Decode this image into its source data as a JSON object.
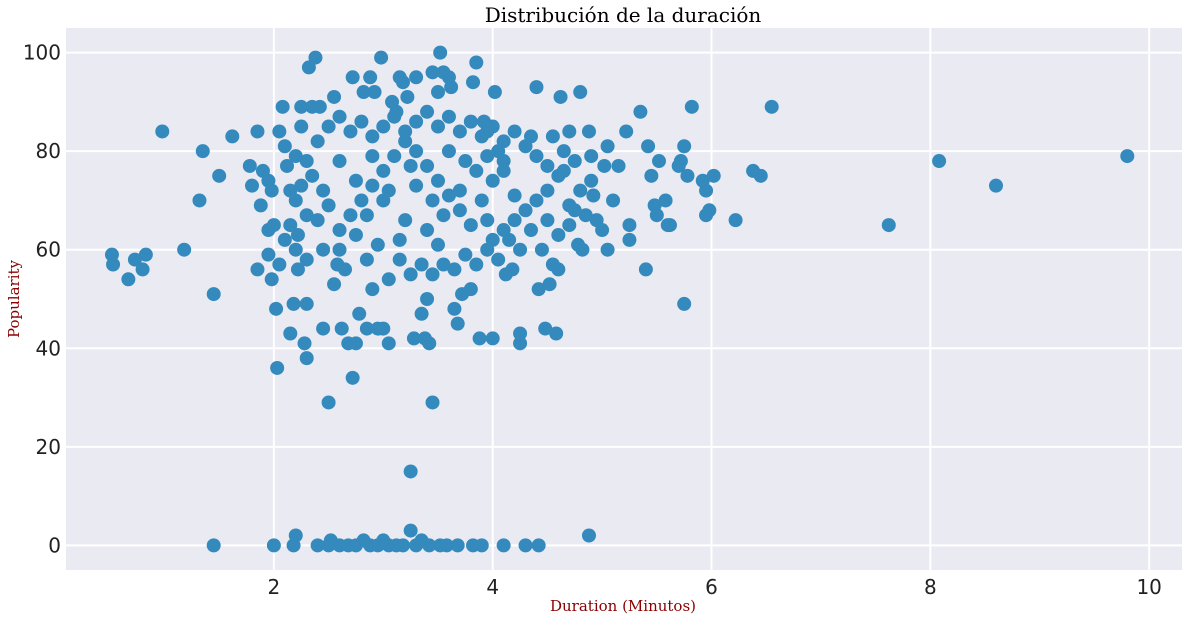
{
  "colors": {
    "background": "#ffffff",
    "plot_area": "#eaeaf2",
    "grid": "#ffffff",
    "marker": "#348abd",
    "axis_label": "#8b0000",
    "title": "#000000"
  },
  "chart_data": {
    "type": "scatter",
    "title": "Distribución de la duración",
    "xlabel": "Duration (Minutos)",
    "ylabel": "Popularity",
    "xlim": [
      0.1,
      10.3
    ],
    "ylim": [
      -5,
      105
    ],
    "xticks": [
      2,
      4,
      6,
      8,
      10
    ],
    "yticks": [
      0,
      20,
      40,
      60,
      80,
      100
    ],
    "grid": true,
    "marker_color": "#348abd",
    "points": [
      [
        0.52,
        59
      ],
      [
        0.53,
        57
      ],
      [
        0.67,
        54
      ],
      [
        0.73,
        58
      ],
      [
        0.83,
        59
      ],
      [
        0.8,
        56
      ],
      [
        0.98,
        84
      ],
      [
        1.18,
        60
      ],
      [
        1.32,
        70
      ],
      [
        1.35,
        80
      ],
      [
        1.45,
        51
      ],
      [
        1.5,
        75
      ],
      [
        1.62,
        83
      ],
      [
        1.78,
        77
      ],
      [
        1.8,
        73
      ],
      [
        1.85,
        84
      ],
      [
        1.88,
        69
      ],
      [
        1.9,
        76
      ],
      [
        1.95,
        74
      ],
      [
        1.98,
        72
      ],
      [
        1.85,
        56
      ],
      [
        1.95,
        59
      ],
      [
        1.98,
        54
      ],
      [
        2.0,
        65
      ],
      [
        2.02,
        48
      ],
      [
        2.03,
        36
      ],
      [
        2.05,
        84
      ],
      [
        2.08,
        89
      ],
      [
        2.1,
        81
      ],
      [
        2.12,
        77
      ],
      [
        2.15,
        43
      ],
      [
        2.15,
        72
      ],
      [
        2.18,
        49
      ],
      [
        2.2,
        79
      ],
      [
        2.22,
        63
      ],
      [
        2.22,
        56
      ],
      [
        2.25,
        85
      ],
      [
        2.25,
        89
      ],
      [
        2.28,
        41
      ],
      [
        2.3,
        38
      ],
      [
        2.3,
        49
      ],
      [
        2.32,
        97
      ],
      [
        2.35,
        89
      ],
      [
        2.38,
        99
      ],
      [
        2.42,
        89
      ],
      [
        2.45,
        44
      ],
      [
        2.5,
        29
      ],
      [
        2.55,
        91
      ],
      [
        2.58,
        57
      ],
      [
        2.62,
        44
      ],
      [
        2.68,
        41
      ],
      [
        2.72,
        34
      ],
      [
        2.72,
        95
      ],
      [
        2.75,
        41
      ],
      [
        2.78,
        47
      ],
      [
        2.82,
        92
      ],
      [
        2.85,
        44
      ],
      [
        2.88,
        95
      ],
      [
        2.9,
        52
      ],
      [
        2.92,
        92
      ],
      [
        2.95,
        44
      ],
      [
        2.98,
        99
      ],
      [
        3.0,
        44
      ],
      [
        3.05,
        41
      ],
      [
        3.08,
        90
      ],
      [
        3.12,
        88
      ],
      [
        3.15,
        95
      ],
      [
        3.18,
        94
      ],
      [
        3.22,
        91
      ],
      [
        3.28,
        42
      ],
      [
        3.3,
        95
      ],
      [
        3.35,
        47
      ],
      [
        3.38,
        42
      ],
      [
        3.4,
        50
      ],
      [
        3.42,
        41
      ],
      [
        3.45,
        29
      ],
      [
        3.45,
        96
      ],
      [
        3.5,
        92
      ],
      [
        3.52,
        100
      ],
      [
        3.55,
        96
      ],
      [
        3.6,
        95
      ],
      [
        3.62,
        93
      ],
      [
        3.65,
        48
      ],
      [
        3.68,
        45
      ],
      [
        3.72,
        51
      ],
      [
        3.8,
        52
      ],
      [
        3.82,
        94
      ],
      [
        3.85,
        98
      ],
      [
        3.88,
        42
      ],
      [
        3.92,
        86
      ],
      [
        3.95,
        84
      ],
      [
        4.0,
        42
      ],
      [
        4.02,
        92
      ],
      [
        4.05,
        80
      ],
      [
        4.1,
        76
      ],
      [
        4.12,
        55
      ],
      [
        4.18,
        56
      ],
      [
        4.25,
        43
      ],
      [
        4.25,
        41
      ],
      [
        4.35,
        83
      ],
      [
        4.4,
        93
      ],
      [
        4.42,
        52
      ],
      [
        4.45,
        60
      ],
      [
        4.48,
        44
      ],
      [
        4.52,
        53
      ],
      [
        4.55,
        57
      ],
      [
        4.58,
        43
      ],
      [
        4.6,
        56
      ],
      [
        4.62,
        91
      ],
      [
        4.65,
        76
      ],
      [
        4.7,
        69
      ],
      [
        4.75,
        68
      ],
      [
        4.78,
        61
      ],
      [
        4.8,
        92
      ],
      [
        4.82,
        60
      ],
      [
        4.85,
        67
      ],
      [
        4.88,
        84
      ],
      [
        4.9,
        79
      ],
      [
        4.92,
        71
      ],
      [
        4.95,
        66
      ],
      [
        5.0,
        64
      ],
      [
        5.02,
        77
      ],
      [
        5.05,
        81
      ],
      [
        5.05,
        60
      ],
      [
        5.1,
        70
      ],
      [
        5.15,
        77
      ],
      [
        5.22,
        84
      ],
      [
        5.25,
        65
      ],
      [
        5.25,
        62
      ],
      [
        5.35,
        88
      ],
      [
        5.4,
        56
      ],
      [
        5.42,
        81
      ],
      [
        5.45,
        75
      ],
      [
        5.48,
        69
      ],
      [
        5.5,
        67
      ],
      [
        5.52,
        78
      ],
      [
        5.58,
        70
      ],
      [
        5.6,
        65
      ],
      [
        5.62,
        65
      ],
      [
        5.7,
        77
      ],
      [
        5.72,
        78
      ],
      [
        5.75,
        81
      ],
      [
        5.78,
        75
      ],
      [
        5.75,
        49
      ],
      [
        5.82,
        89
      ],
      [
        5.92,
        74
      ],
      [
        5.95,
        72
      ],
      [
        5.95,
        67
      ],
      [
        5.98,
        68
      ],
      [
        6.02,
        75
      ],
      [
        6.22,
        66
      ],
      [
        6.38,
        76
      ],
      [
        6.45,
        75
      ],
      [
        6.55,
        89
      ],
      [
        7.62,
        65
      ],
      [
        8.08,
        78
      ],
      [
        8.6,
        73
      ],
      [
        9.8,
        79
      ],
      [
        1.45,
        0
      ],
      [
        2.0,
        0
      ],
      [
        2.18,
        0
      ],
      [
        2.2,
        2
      ],
      [
        2.4,
        0
      ],
      [
        2.5,
        0
      ],
      [
        2.52,
        1
      ],
      [
        2.6,
        0
      ],
      [
        2.68,
        0
      ],
      [
        2.75,
        0
      ],
      [
        2.82,
        1
      ],
      [
        2.88,
        0
      ],
      [
        2.95,
        0
      ],
      [
        3.0,
        1
      ],
      [
        3.05,
        0
      ],
      [
        3.12,
        0
      ],
      [
        3.18,
        0
      ],
      [
        3.25,
        3
      ],
      [
        3.3,
        0
      ],
      [
        3.35,
        1
      ],
      [
        3.42,
        0
      ],
      [
        3.52,
        0
      ],
      [
        3.58,
        0
      ],
      [
        3.68,
        0
      ],
      [
        3.82,
        0
      ],
      [
        3.9,
        0
      ],
      [
        4.1,
        0
      ],
      [
        4.3,
        0
      ],
      [
        4.42,
        0
      ],
      [
        4.88,
        2
      ],
      [
        3.25,
        15
      ],
      [
        2.55,
        53
      ],
      [
        2.6,
        60
      ],
      [
        2.65,
        56
      ],
      [
        2.75,
        63
      ],
      [
        2.85,
        58
      ],
      [
        2.95,
        61
      ],
      [
        3.05,
        54
      ],
      [
        3.15,
        58
      ],
      [
        3.25,
        55
      ],
      [
        3.35,
        57
      ],
      [
        3.45,
        55
      ],
      [
        3.55,
        57
      ],
      [
        3.65,
        56
      ],
      [
        3.75,
        59
      ],
      [
        3.85,
        57
      ],
      [
        3.95,
        60
      ],
      [
        4.05,
        58
      ],
      [
        4.15,
        62
      ],
      [
        4.25,
        60
      ],
      [
        4.35,
        64
      ],
      [
        2.4,
        66
      ],
      [
        2.5,
        69
      ],
      [
        2.45,
        72
      ],
      [
        2.35,
        75
      ],
      [
        2.3,
        78
      ],
      [
        2.4,
        82
      ],
      [
        2.5,
        85
      ],
      [
        2.6,
        87
      ],
      [
        2.7,
        84
      ],
      [
        2.8,
        86
      ],
      [
        2.9,
        83
      ],
      [
        3.0,
        85
      ],
      [
        3.1,
        87
      ],
      [
        3.2,
        84
      ],
      [
        3.3,
        86
      ],
      [
        3.4,
        88
      ],
      [
        3.5,
        85
      ],
      [
        3.6,
        87
      ],
      [
        3.7,
        84
      ],
      [
        3.8,
        86
      ],
      [
        3.9,
        83
      ],
      [
        4.0,
        85
      ],
      [
        4.1,
        82
      ],
      [
        4.2,
        84
      ],
      [
        4.3,
        81
      ],
      [
        4.4,
        79
      ],
      [
        4.5,
        77
      ],
      [
        4.6,
        75
      ],
      [
        4.5,
        72
      ],
      [
        4.4,
        70
      ],
      [
        4.3,
        68
      ],
      [
        4.2,
        66
      ],
      [
        4.1,
        64
      ],
      [
        4.0,
        62
      ],
      [
        2.6,
        64
      ],
      [
        2.7,
        67
      ],
      [
        2.8,
        70
      ],
      [
        2.9,
        73
      ],
      [
        3.0,
        76
      ],
      [
        3.1,
        79
      ],
      [
        3.2,
        82
      ],
      [
        3.3,
        80
      ],
      [
        3.4,
        77
      ],
      [
        3.5,
        74
      ],
      [
        3.6,
        71
      ],
      [
        3.7,
        68
      ],
      [
        3.8,
        65
      ],
      [
        3.9,
        70
      ],
      [
        4.0,
        74
      ],
      [
        4.1,
        78
      ],
      [
        2.2,
        70
      ],
      [
        2.25,
        73
      ],
      [
        2.3,
        67
      ],
      [
        2.15,
        65
      ],
      [
        2.1,
        62
      ],
      [
        2.2,
        60
      ],
      [
        2.3,
        58
      ],
      [
        2.45,
        60
      ],
      [
        4.5,
        66
      ],
      [
        4.6,
        63
      ],
      [
        4.7,
        65
      ],
      [
        4.8,
        72
      ],
      [
        4.9,
        74
      ],
      [
        4.75,
        78
      ],
      [
        4.65,
        80
      ],
      [
        4.55,
        83
      ],
      [
        4.7,
        84
      ],
      [
        2.05,
        57
      ],
      [
        1.95,
        64
      ],
      [
        2.6,
        78
      ],
      [
        2.75,
        74
      ],
      [
        3.0,
        70
      ],
      [
        3.2,
        66
      ],
      [
        3.4,
        64
      ],
      [
        3.55,
        67
      ],
      [
        3.7,
        72
      ],
      [
        3.85,
        76
      ],
      [
        3.95,
        79
      ],
      [
        3.3,
        73
      ],
      [
        3.45,
        70
      ],
      [
        2.9,
        79
      ],
      [
        3.05,
        72
      ],
      [
        3.25,
        77
      ],
      [
        3.6,
        80
      ],
      [
        3.75,
        78
      ],
      [
        2.85,
        67
      ],
      [
        3.15,
        62
      ],
      [
        3.5,
        61
      ],
      [
        3.95,
        66
      ],
      [
        4.2,
        71
      ]
    ]
  }
}
